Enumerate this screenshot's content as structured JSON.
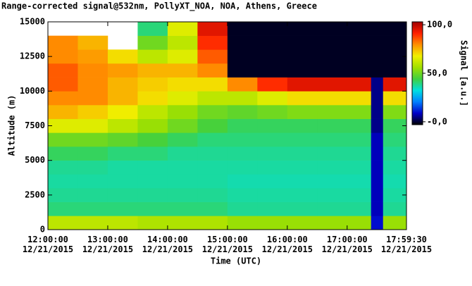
{
  "chart_data": {
    "type": "heatmap",
    "title": "Range-corrected signal@532nm, PollyXT_NOA, NOA, Athens, Greece",
    "x_label": "Time (UTC)",
    "y_label": "Altitude (m)",
    "colorbar_label": "Signal [a.u.]",
    "xlim": [
      12,
      17.9917
    ],
    "xticks": [
      {
        "value": 12,
        "label": "12:00:00\n12/21/2015"
      },
      {
        "value": 13,
        "label": "13:00:00\n12/21/2015"
      },
      {
        "value": 14,
        "label": "14:00:00\n12/21/2015"
      },
      {
        "value": 15,
        "label": "15:00:00\n12/21/2015"
      },
      {
        "value": 16,
        "label": "16:00:00\n12/21/2015"
      },
      {
        "value": 17,
        "label": "17:00:00\n12/21/2015"
      },
      {
        "value": 17.9917,
        "label": "17:59:30\n12/21/2015"
      }
    ],
    "ylim": [
      0,
      15000
    ],
    "yticks": [
      0,
      2500,
      5000,
      7500,
      10000,
      12500,
      15000
    ],
    "clim": [
      -3,
      103
    ],
    "cticks": [
      {
        "value": 100,
        "label": "100,0"
      },
      {
        "value": 50,
        "label": "50,0"
      },
      {
        "value": 0,
        "label": "-0,0"
      }
    ],
    "colormap": [
      "#000000",
      "#0000c8",
      "#0080ff",
      "#00e0e0",
      "#40d040",
      "#a0e000",
      "#f0f000",
      "#ff9000",
      "#ff2000",
      "#a00000"
    ],
    "x_edges": [
      12,
      12.5,
      13,
      13.5,
      14,
      14.5,
      15,
      15.5,
      16,
      16.5,
      17,
      17.4,
      17.6,
      17.9917
    ],
    "y_edges": [
      0,
      1000,
      2000,
      3000,
      4000,
      5000,
      6000,
      7000,
      8000,
      9000,
      10000,
      11000,
      12000,
      13000,
      14000,
      15000
    ],
    "z": [
      [
        60,
        60,
        60,
        58,
        58,
        58,
        55,
        55,
        55,
        55,
        55,
        10,
        55
      ],
      [
        40,
        40,
        40,
        40,
        40,
        40,
        38,
        38,
        38,
        38,
        38,
        8,
        38
      ],
      [
        38,
        38,
        38,
        38,
        38,
        38,
        37,
        37,
        37,
        37,
        37,
        8,
        37
      ],
      [
        37,
        37,
        37,
        37,
        37,
        37,
        36,
        36,
        36,
        36,
        36,
        8,
        36
      ],
      [
        38,
        38,
        37,
        37,
        37,
        37,
        37,
        37,
        37,
        37,
        37,
        8,
        37
      ],
      [
        42,
        42,
        40,
        40,
        38,
        38,
        38,
        38,
        38,
        38,
        38,
        8,
        38
      ],
      [
        50,
        50,
        48,
        45,
        42,
        40,
        40,
        40,
        40,
        40,
        40,
        8,
        40
      ],
      [
        65,
        65,
        60,
        55,
        50,
        45,
        42,
        42,
        42,
        42,
        42,
        5,
        42
      ],
      [
        75,
        72,
        68,
        60,
        55,
        50,
        48,
        50,
        52,
        52,
        52,
        5,
        52
      ],
      [
        80,
        80,
        75,
        70,
        65,
        60,
        60,
        65,
        70,
        70,
        70,
        5,
        70
      ],
      [
        85,
        80,
        75,
        72,
        70,
        70,
        80,
        90,
        95,
        95,
        95,
        5,
        95
      ],
      [
        85,
        80,
        78,
        75,
        75,
        80,
        -1,
        -1,
        -1,
        -1,
        -1,
        -1,
        -1
      ],
      [
        80,
        78,
        70,
        60,
        65,
        85,
        -1,
        -1,
        -1,
        -1,
        -1,
        -1,
        -1
      ],
      [
        80,
        75,
        null,
        50,
        60,
        90,
        -1,
        -1,
        -1,
        -1,
        -1,
        -1,
        -1
      ],
      [
        null,
        null,
        null,
        40,
        65,
        95,
        -1,
        -1,
        -1,
        -1,
        -1,
        -1,
        -1
      ]
    ]
  }
}
